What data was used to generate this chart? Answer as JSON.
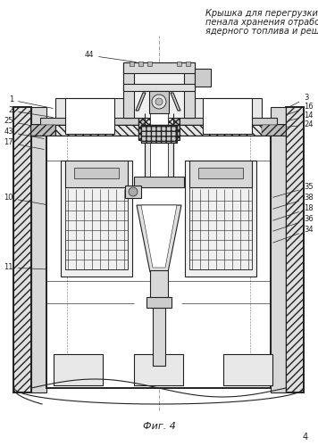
{
  "title_line1": "Крышка для перегрузки решетки",
  "title_line2": "пенала хранения отработавшего",
  "title_line3": "ядерного топлива и решетка",
  "fig_label": "Фиг. 4",
  "page_number": "4",
  "bg_color": "#ffffff",
  "line_color": "#222222",
  "font_size_title": 7.0,
  "font_size_label": 6.0,
  "font_size_fig": 8.0,
  "font_size_page": 7.0
}
